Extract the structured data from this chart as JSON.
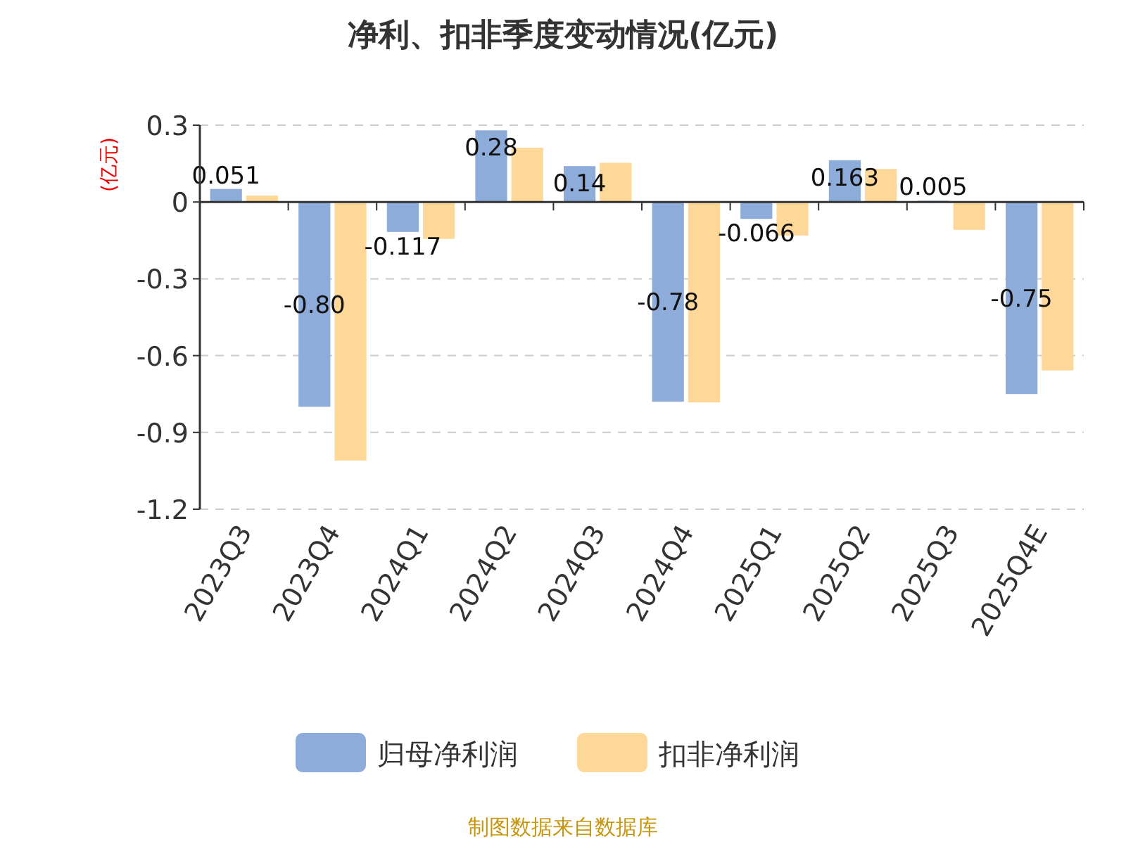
{
  "chart_data": {
    "type": "bar",
    "title": "净利、扣非季度变动情况(亿元)",
    "ylabel": "(亿元)",
    "categories": [
      "2023Q3",
      "2023Q4",
      "2024Q1",
      "2024Q2",
      "2024Q3",
      "2024Q4",
      "2025Q1",
      "2025Q2",
      "2025Q3",
      "2025Q4E"
    ],
    "series": [
      {
        "name": "归母净利润",
        "color": "#8eacd9",
        "values": [
          0.051,
          -0.8,
          -0.117,
          0.28,
          0.14,
          -0.78,
          -0.066,
          0.163,
          0.005,
          -0.75
        ],
        "value_labels": [
          "0.051",
          "-0.80",
          "-0.117",
          "0.28",
          "0.14",
          "-0.78",
          "-0.066",
          "0.163",
          "0.005",
          "-0.75"
        ]
      },
      {
        "name": "扣非净利润",
        "color": "#fed899",
        "values": [
          0.025,
          -1.01,
          -0.144,
          0.212,
          0.153,
          -0.783,
          -0.131,
          0.129,
          -0.109,
          -0.658
        ]
      }
    ],
    "ylim": [
      -1.2,
      0.3
    ],
    "yticks": [
      0.3,
      0,
      -0.3,
      -0.6,
      -0.9,
      -1.2
    ],
    "grid": "y",
    "legend": "bottom",
    "annotations": [
      "制图数据来自数据库"
    ]
  }
}
